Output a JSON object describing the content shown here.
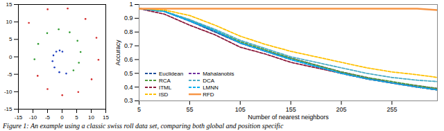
{
  "chart_data": [
    {
      "type": "scatter",
      "xlim": [
        -15,
        15
      ],
      "xticks": [
        -15,
        -10,
        -5,
        0,
        5,
        10,
        15
      ],
      "ylim": [
        -15,
        15
      ],
      "yticks": [
        -15,
        -10,
        -5,
        0,
        5,
        10,
        15
      ],
      "grid": false,
      "series": [
        {
          "color": "#1f3fbf",
          "marker": "dot",
          "x": [
            0.11,
            -0.83,
            -2.0,
            -2.97,
            -3.28,
            -2.61,
            -0.95,
            1.42
          ],
          "y": [
            1.5,
            1.82,
            1.5,
            0.42,
            -1.23,
            -3.03,
            -4.4,
            -4.79
          ]
        },
        {
          "color": "#2e9a2e",
          "marker": "dot",
          "x": [
            3.9,
            5.76,
            6.35,
            5.28,
            2.6,
            -1.16,
            -5.12,
            -8.2,
            -9.47
          ],
          "y": [
            -3.88,
            -1.68,
            1.4,
            4.6,
            7.03,
            7.91,
            6.78,
            3.71,
            -0.71
          ]
        },
        {
          "color": "#d42a2a",
          "marker": "dot",
          "x": [
            -8.39,
            -5.0,
            0.05,
            5.55,
            10.13,
            12.48,
            11.79,
            8.02,
            1.92,
            -4.96,
            -11.4
          ],
          "y": [
            -5.44,
            -9.24,
            -11.0,
            -10.07,
            -6.44,
            -0.83,
            5.46,
            10.86,
            13.87,
            13.63,
            9.75
          ]
        }
      ]
    },
    {
      "type": "line",
      "x_label": "Number of nearest neighbors",
      "y_label": "Accuracy",
      "x": [
        5,
        30,
        55,
        80,
        105,
        130,
        155,
        180,
        205,
        230,
        255,
        280,
        300
      ],
      "xlim": [
        5,
        300
      ],
      "xticks": [
        5,
        55,
        105,
        155,
        205,
        255
      ],
      "ylim": [
        0.3,
        1
      ],
      "yticks": [
        0.3,
        0.4,
        0.5,
        0.6,
        0.7,
        0.8,
        0.9,
        1
      ],
      "grid": false,
      "legend": "lower left",
      "series": [
        {
          "name": "Euclidean",
          "color": "#1f4e9a",
          "line_style": "dashed",
          "values": [
            0.97,
            0.95,
            0.88,
            0.8,
            0.72,
            0.66,
            0.6,
            0.55,
            0.5,
            0.46,
            0.43,
            0.4,
            0.38
          ]
        },
        {
          "name": "Mahalanobis",
          "color": "#7030a0",
          "line_style": "dashed",
          "values": [
            0.97,
            0.95,
            0.88,
            0.81,
            0.72,
            0.66,
            0.61,
            0.56,
            0.51,
            0.47,
            0.43,
            0.41,
            0.39
          ]
        },
        {
          "name": "RCA",
          "color": "#4f9a3a",
          "line_style": "dashed",
          "values": [
            0.97,
            0.95,
            0.89,
            0.81,
            0.73,
            0.67,
            0.61,
            0.56,
            0.51,
            0.47,
            0.44,
            0.41,
            0.39
          ]
        },
        {
          "name": "DCA",
          "color": "#4bacc6",
          "line_style": "dashed",
          "values": [
            0.97,
            0.95,
            0.89,
            0.82,
            0.74,
            0.68,
            0.62,
            0.58,
            0.54,
            0.5,
            0.47,
            0.45,
            0.44
          ]
        },
        {
          "name": "ITML",
          "color": "#8b1a3a",
          "line_style": "dashed",
          "values": [
            0.97,
            0.93,
            0.85,
            0.78,
            0.69,
            0.64,
            0.58,
            0.54,
            0.5,
            0.46,
            0.43,
            0.4,
            0.38
          ]
        },
        {
          "name": "LMNN",
          "color": "#00b0f0",
          "line_style": "dashed",
          "values": [
            0.97,
            0.95,
            0.88,
            0.81,
            0.72,
            0.66,
            0.6,
            0.55,
            0.5,
            0.46,
            0.43,
            0.4,
            0.38
          ]
        },
        {
          "name": "ISD",
          "color": "#ffc000",
          "line_style": "dashed",
          "values": [
            0.97,
            0.96,
            0.92,
            0.85,
            0.77,
            0.71,
            0.66,
            0.62,
            0.58,
            0.54,
            0.51,
            0.49,
            0.47
          ]
        },
        {
          "name": "RFD",
          "color": "#f79646",
          "line_style": "solid",
          "values": [
            0.97,
            0.97,
            0.97,
            0.97,
            0.97,
            0.97,
            0.97,
            0.97,
            0.97,
            0.97,
            0.97,
            0.97,
            0.96
          ]
        }
      ]
    }
  ],
  "caption": "Figure 1: An example using a classic swiss roll data set, comparing both global and position specific"
}
